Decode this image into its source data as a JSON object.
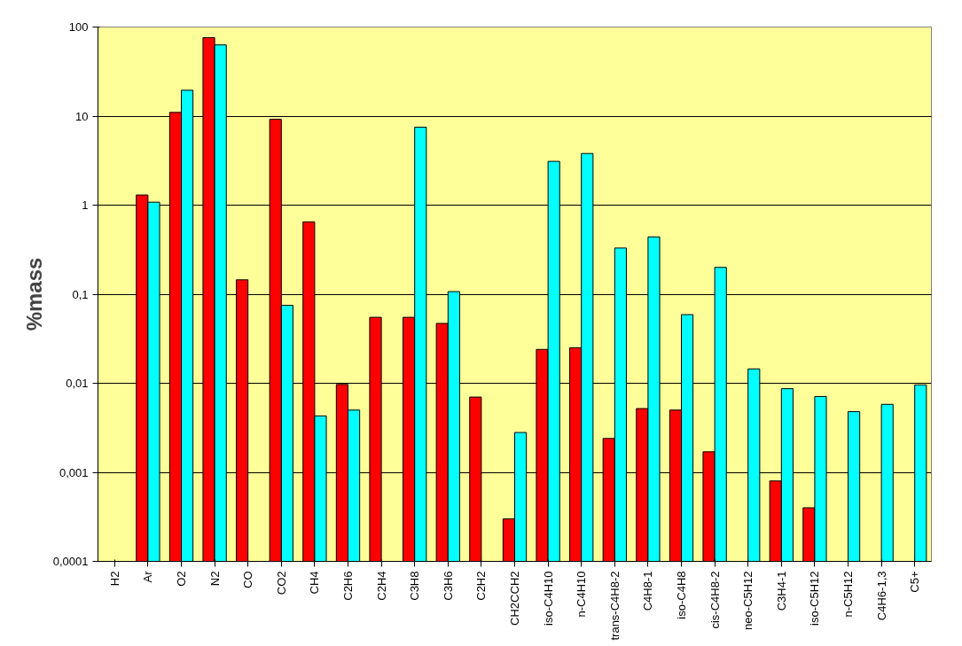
{
  "chart_data": {
    "type": "bar",
    "ylabel": "%mass",
    "log": true,
    "grid": "y",
    "categories": [
      "H2",
      "Ar",
      "O2",
      "N2",
      "CO",
      "CO2",
      "CH4",
      "C2H6",
      "C2H4",
      "C3H8",
      "C3H6",
      "C2H2",
      "CH2CCH2",
      "iso-C4H10",
      "n-C4H10",
      "trans-C4H8-2",
      "C4H8-1",
      "iso-C4H8",
      "cis-C4H8-2",
      "neo-C5H12",
      "C3H4-1",
      "iso-C5H12",
      "n-C5H12",
      "C4H6-1,3",
      "C5+"
    ],
    "series": [
      {
        "color": "#ff0000",
        "values": [
          null,
          1.3,
          11,
          76,
          0.145,
          9.2,
          0.65,
          0.0097,
          0.055,
          0.055,
          0.047,
          0.007,
          0.0003,
          0.024,
          0.025,
          0.0024,
          0.0052,
          0.005,
          0.0017,
          null,
          0.0008,
          0.0004,
          null,
          null,
          null
        ]
      },
      {
        "color": "#00ffff",
        "values": [
          null,
          1.08,
          19.5,
          63,
          null,
          0.075,
          0.0043,
          0.005,
          null,
          7.5,
          0.107,
          null,
          0.0028,
          3.1,
          3.8,
          0.33,
          0.44,
          0.059,
          0.2,
          0.0145,
          0.0087,
          0.0071,
          0.0048,
          0.0058,
          0.0096
        ]
      }
    ],
    "ylim": [
      0.0001,
      100
    ],
    "yticks": [
      {
        "value": 0.0001,
        "label": "0,0001"
      },
      {
        "value": 0.001,
        "label": "0,001"
      },
      {
        "value": 0.01,
        "label": "0,01"
      },
      {
        "value": 0.1,
        "label": "0,1"
      },
      1,
      10,
      100
    ]
  }
}
